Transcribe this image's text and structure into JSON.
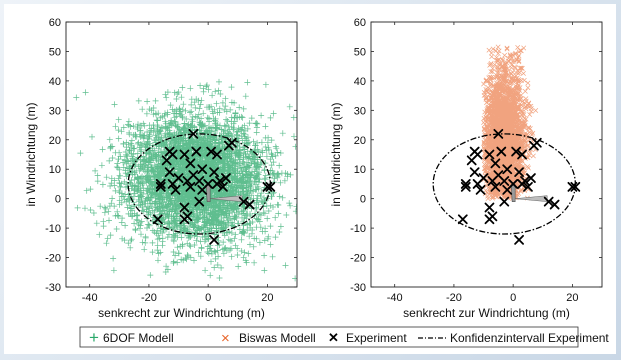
{
  "chart_data": [
    {
      "type": "scatter",
      "title": "",
      "xlabel": "senkrecht zur Windrichtung (m)",
      "ylabel": "in Windrichtung (m)",
      "xlim": [
        -48,
        30
      ],
      "ylim": [
        -30,
        60
      ],
      "xticks": [
        -40,
        -20,
        0,
        20
      ],
      "yticks": [
        -30,
        -20,
        -10,
        0,
        10,
        20,
        30,
        40,
        50,
        60
      ],
      "grid": false,
      "series": [
        {
          "name": "6DOF Modell",
          "color": "#2aa86a",
          "marker": "+",
          "note_count": 4000,
          "distribution": {
            "center": [
              -4,
              7
            ],
            "spread": [
              12,
              11
            ],
            "x_range": [
              -45,
              30
            ],
            "y_range": [
              -28,
              40
            ]
          }
        },
        {
          "name": "Experiment",
          "color": "#000000",
          "marker": "x",
          "points": [
            [
              -5,
              22
            ],
            [
              -13,
              16
            ],
            [
              -12,
              15
            ],
            [
              -4,
              16
            ],
            [
              -8,
              15
            ],
            [
              -6,
              12
            ],
            [
              -2,
              10
            ],
            [
              1,
              16
            ],
            [
              3,
              15
            ],
            [
              7,
              18
            ],
            [
              8,
              19
            ],
            [
              -14,
              13
            ],
            [
              -13,
              9
            ],
            [
              -10,
              7
            ],
            [
              -16,
              5
            ],
            [
              -16,
              4
            ],
            [
              -12,
              5
            ],
            [
              -11,
              3
            ],
            [
              -7,
              6
            ],
            [
              -6,
              4
            ],
            [
              -3,
              6
            ],
            [
              -2,
              3
            ],
            [
              0,
              5
            ],
            [
              3,
              5
            ],
            [
              4,
              6
            ],
            [
              5,
              4
            ],
            [
              6,
              7
            ],
            [
              2,
              9
            ],
            [
              -5,
              8
            ],
            [
              -17,
              -7
            ],
            [
              -8,
              -3
            ],
            [
              -7,
              -6
            ],
            [
              -8,
              -7
            ],
            [
              -3,
              -1
            ],
            [
              2,
              -14
            ],
            [
              12,
              -1
            ],
            [
              14,
              -2
            ],
            [
              20,
              4
            ],
            [
              21,
              4
            ]
          ]
        },
        {
          "name": "Konfidenzintervall Experiment",
          "type": "ellipse",
          "center": [
            -3,
            5
          ],
          "radii": [
            24,
            17
          ],
          "color": "#000000",
          "dash": "dash-dot"
        }
      ]
    },
    {
      "type": "scatter",
      "title": "",
      "xlabel": "senkrecht zur Windrichtung (m)",
      "ylabel": "in Windrichtung (m)",
      "xlim": [
        -48,
        30
      ],
      "ylim": [
        -30,
        60
      ],
      "xticks": [
        -40,
        -20,
        0,
        20
      ],
      "yticks": [
        -30,
        -20,
        -10,
        0,
        10,
        20,
        30,
        40,
        50,
        60
      ],
      "grid": false,
      "series": [
        {
          "name": "Biswas Modell",
          "color": "#e8652a",
          "marker": "x",
          "note_count": 3000,
          "distribution": {
            "center": [
              -3,
              20
            ],
            "spread": [
              3.5,
              12
            ],
            "x_range": [
              -10,
              8
            ],
            "y_range": [
              0,
              52
            ]
          }
        },
        {
          "name": "Experiment",
          "color": "#000000",
          "marker": "x",
          "points": [
            [
              -5,
              22
            ],
            [
              -13,
              16
            ],
            [
              -12,
              15
            ],
            [
              -4,
              16
            ],
            [
              -8,
              15
            ],
            [
              -6,
              12
            ],
            [
              -2,
              10
            ],
            [
              1,
              16
            ],
            [
              3,
              15
            ],
            [
              7,
              18
            ],
            [
              8,
              19
            ],
            [
              -14,
              13
            ],
            [
              -13,
              9
            ],
            [
              -10,
              7
            ],
            [
              -16,
              5
            ],
            [
              -16,
              4
            ],
            [
              -12,
              5
            ],
            [
              -11,
              3
            ],
            [
              -7,
              6
            ],
            [
              -6,
              4
            ],
            [
              -3,
              6
            ],
            [
              -2,
              3
            ],
            [
              0,
              5
            ],
            [
              3,
              5
            ],
            [
              4,
              6
            ],
            [
              5,
              4
            ],
            [
              6,
              7
            ],
            [
              2,
              9
            ],
            [
              -5,
              8
            ],
            [
              -17,
              -7
            ],
            [
              -8,
              -3
            ],
            [
              -7,
              -6
            ],
            [
              -8,
              -7
            ],
            [
              -3,
              -1
            ],
            [
              2,
              -14
            ],
            [
              12,
              -1
            ],
            [
              14,
              -2
            ],
            [
              20,
              4
            ],
            [
              21,
              4
            ]
          ]
        },
        {
          "name": "Konfidenzintervall Experiment",
          "type": "ellipse",
          "center": [
            -3,
            5
          ],
          "radii": [
            24,
            17
          ],
          "color": "#000000",
          "dash": "dash-dot"
        }
      ]
    }
  ],
  "legend": {
    "items": [
      {
        "label": "6DOF Modell",
        "symbol": "+",
        "color": "#2aa86a"
      },
      {
        "label": "Biswas Modell",
        "symbol": "×",
        "color": "#e8652a"
      },
      {
        "label": "Experiment",
        "symbol": "✕",
        "color": "#000000"
      },
      {
        "label": "Konfidenzintervall Experiment",
        "symbol": "dash-dot",
        "color": "#000000"
      }
    ]
  }
}
